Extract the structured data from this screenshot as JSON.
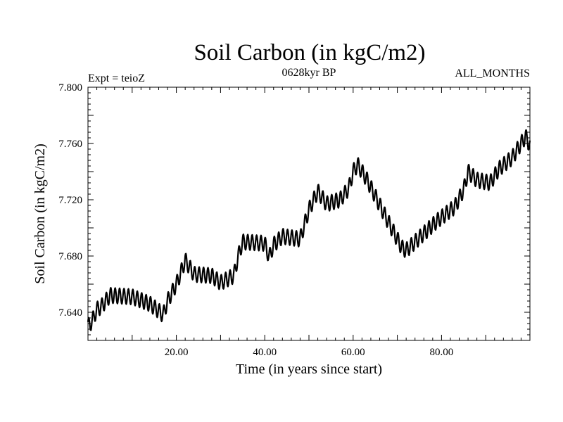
{
  "chart_data": {
    "type": "line",
    "title": "Soil Carbon (in kgC/m2)",
    "subtitle_left": "Expt = teioZ",
    "subtitle_center": "0628kyr BP",
    "subtitle_right": "ALL_MONTHS",
    "xlabel": "Time (in years since start)",
    "ylabel": "Soil Carbon (in kgC/m2)",
    "xlim": [
      0,
      100
    ],
    "ylim": [
      7.62,
      7.8
    ],
    "xticks": [
      20,
      40,
      60,
      80
    ],
    "xtick_labels": [
      "20.00",
      "40.00",
      "60.00",
      "80.00"
    ],
    "yticks": [
      7.64,
      7.68,
      7.72,
      7.76,
      7.8
    ],
    "ytick_labels": [
      "7.640",
      "7.680",
      "7.720",
      "7.760",
      "7.800"
    ],
    "annual_cycle_amplitude": 0.0055,
    "series": [
      {
        "name": "Soil Carbon",
        "x": [
          0,
          1,
          2,
          3,
          5,
          10,
          14,
          16,
          17,
          18,
          20,
          21,
          22,
          24,
          28,
          30,
          33,
          34,
          35,
          40,
          41,
          42,
          44,
          48,
          50,
          52,
          54,
          57,
          59,
          60,
          61,
          63,
          68,
          71,
          72,
          75,
          79,
          83,
          85,
          86,
          88,
          91,
          93,
          96,
          99,
          100
        ],
        "y": [
          7.63,
          7.634,
          7.642,
          7.644,
          7.652,
          7.651,
          7.646,
          7.641,
          7.638,
          7.648,
          7.66,
          7.668,
          7.677,
          7.667,
          7.666,
          7.661,
          7.666,
          7.68,
          7.69,
          7.689,
          7.679,
          7.688,
          7.694,
          7.692,
          7.713,
          7.726,
          7.717,
          7.72,
          7.728,
          7.74,
          7.745,
          7.735,
          7.704,
          7.686,
          7.684,
          7.693,
          7.705,
          7.715,
          7.727,
          7.74,
          7.734,
          7.732,
          7.742,
          7.75,
          7.765,
          7.759
        ]
      }
    ]
  }
}
